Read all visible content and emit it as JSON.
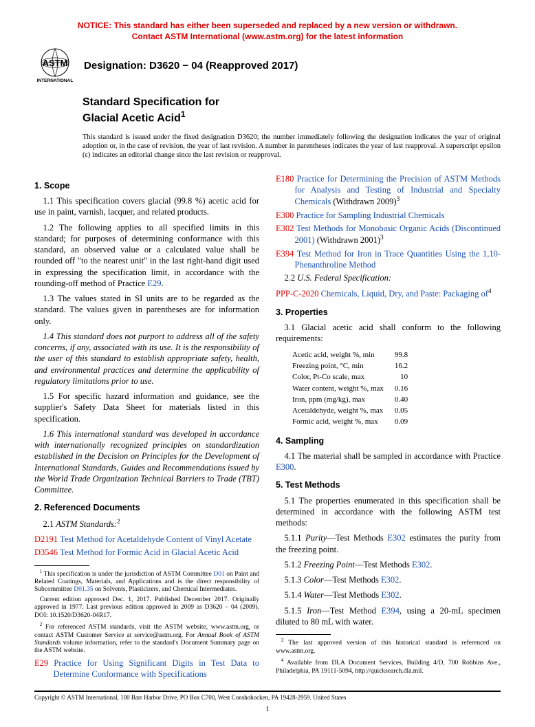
{
  "notice": {
    "line1": "NOTICE: This standard has either been superseded and replaced by a new version or withdrawn.",
    "line2": "Contact ASTM International (www.astm.org) for the latest information"
  },
  "logo": {
    "top_text": "ASTM",
    "bottom_text": "INTERNATIONAL"
  },
  "designation": "Designation: D3620 − 04 (Reapproved 2017)",
  "title_line1": "Standard Specification for",
  "title_line2": "Glacial Acetic Acid",
  "title_sup": "1",
  "issue_note": "This standard is issued under the fixed designation D3620; the number immediately following the designation indicates the year of original adoption or, in the case of revision, the year of last revision. A number in parentheses indicates the year of last reapproval. A superscript epsilon (ε) indicates an editorial change since the last revision or reapproval.",
  "sec1": {
    "head": "1. Scope",
    "p1": "1.1 This specification covers glacial (99.8 %) acetic acid for use in paint, varnish, lacquer, and related products.",
    "p2a": "1.2 The following applies to all specified limits in this standard; for purposes of determining conformance with this standard, an observed value or a calculated value shall be rounded off \"to the nearest unit\" in the last right-hand digit used in expressing the specification limit, in accordance with the rounding-off method of Practice ",
    "p2_link": "E29",
    "p2b": ".",
    "p3": "1.3 The values stated in SI units are to be regarded as the standard. The values given in parentheses are for information only.",
    "p4": "1.4 This standard does not purport to address all of the safety concerns, if any, associated with its use. It is the responsibility of the user of this standard to establish appropriate safety, health, and environmental practices and determine the applicability of regulatory limitations prior to use.",
    "p5": "1.5 For specific hazard information and guidance, see the supplier's Safety Data Sheet for materials listed in this specification.",
    "p6": "1.6 This international standard was developed in accordance with internationally recognized principles on standardization established in the Decision on Principles for the Development of International Standards, Guides and Recommendations issued by the World Trade Organization Technical Barriers to Trade (TBT) Committee."
  },
  "sec2": {
    "head": "2. Referenced Documents",
    "sub21": "2.1 ",
    "sub21_ital": "ASTM Standards:",
    "sub21_sup": "2",
    "d2191_code": "D2191",
    "d2191_text": " Test Method for Acetaldehyde Content of Vinyl Acetate",
    "d3546_code": "D3546",
    "d3546_text": " Test Method for Formic Acid in Glacial Acetic Acid",
    "e29_code": "E29",
    "e29_text": " Practice for Using Significant Digits in Test Data to Determine Conformance with Specifications",
    "e180_code": "E180",
    "e180_text": " Practice for Determining the Precision of ASTM Methods for Analysis and Testing of Industrial and Specialty Chemicals",
    "e180_withdrawn": " (Withdrawn 2009)",
    "e180_sup": "3",
    "e300_code": "E300",
    "e300_text": " Practice for Sampling Industrial Chemicals",
    "e302_code": "E302",
    "e302_text": " Test Methods for Monobasic Organic Acids (Discontinued 2001)",
    "e302_withdrawn": " (Withdrawn 2001)",
    "e302_sup": "3",
    "e394_code": "E394",
    "e394_text": " Test Method for Iron in Trace Quantities Using the 1,10-Phenanthroline Method",
    "sub22": "2.2 ",
    "sub22_ital": "U.S. Federal Specification:",
    "pppc_code": "PPP-C-2020",
    "pppc_text": " Chemicals, Liquid, Dry, and Paste: Packaging of",
    "pppc_sup": "4"
  },
  "sec3": {
    "head": "3. Properties",
    "p1": "3.1 Glacial acetic acid shall conform to the following requirements:",
    "rows": [
      [
        "Acetic acid, weight %, min",
        "99.8"
      ],
      [
        "Freezing point, °C, min",
        "16.2"
      ],
      [
        "Color, Pt-Co scale, max",
        "10"
      ],
      [
        "Water content, weight %, max",
        "0.16"
      ],
      [
        "Iron, ppm (mg/kg), max",
        "0.40"
      ],
      [
        "Acetaldehyde, weight %, max",
        "0.05"
      ],
      [
        "Formic acid, weight %, max",
        "0.09"
      ]
    ]
  },
  "sec4": {
    "head": "4. Sampling",
    "p1a": "4.1 The material shall be sampled in accordance with Practice ",
    "p1_link": "E300",
    "p1b": "."
  },
  "sec5": {
    "head": "5. Test Methods",
    "p1": "5.1 The properties enumerated in this specification shall be determined in accordance with the following ASTM test methods:",
    "p11a": "5.1.1 ",
    "p11_ital": "Purity",
    "p11b": "—Test Methods ",
    "p11_link": "E302",
    "p11c": " estimates the purity from the freezing point.",
    "p12a": "5.1.2 ",
    "p12_ital": "Freezing Point",
    "p12b": "—Test Methods ",
    "p12_link": "E302",
    "p12c": ".",
    "p13a": "5.1.3 ",
    "p13_ital": "Color",
    "p13b": "—Test Methods ",
    "p13_link": "E302",
    "p13c": ".",
    "p14a": "5.1.4 ",
    "p14_ital": "Water",
    "p14b": "—Test Methods ",
    "p14_link": "E302",
    "p14c": ".",
    "p15a": "5.1.5 ",
    "p15_ital": "Iron",
    "p15b": "—Test Method ",
    "p15_link": "E394",
    "p15c": ", using a 20-mL specimen diluted to 80 mL with water."
  },
  "footnotes_left": {
    "f1a": "1",
    "f1b": " This specification is under the jurisdiction of ASTM Committee ",
    "f1_link1": "D01",
    "f1c": " on Paint and Related Coatings, Materials, and Applications and is the direct responsibility of Subcommittee ",
    "f1_link2": "D01.35",
    "f1d": " on Solvents, Plasticizers, and Chemical Intermediates.",
    "f1e": "Current edition approved Dec. 1, 2017. Published December 2017. Originally approved in 1977. Last previous edition approved in 2009 as D3620 – 04 (2009). DOI: 10.1520/D3620-04R17.",
    "f2a": "2",
    "f2b": " For referenced ASTM standards, visit the ASTM website, www.astm.org, or contact ASTM Customer Service at service@astm.org. For ",
    "f2_ital": "Annual Book of ASTM Standards",
    "f2c": " volume information, refer to the standard's Document Summary page on the ASTM website."
  },
  "footnotes_right": {
    "f3a": "3",
    "f3b": " The last approved version of this historical standard is referenced on www.astm.org.",
    "f4a": "4",
    "f4b": " Available from DLA Document Services, Building 4/D, 700 Robbins Ave., Philadelphia, PA 19111-5094, http://quicksearch.dla.mil."
  },
  "copyright": "Copyright © ASTM International, 100 Barr Harbor Drive, PO Box C700, West Conshohocken, PA 19428-2959. United States",
  "pagenum": "1"
}
